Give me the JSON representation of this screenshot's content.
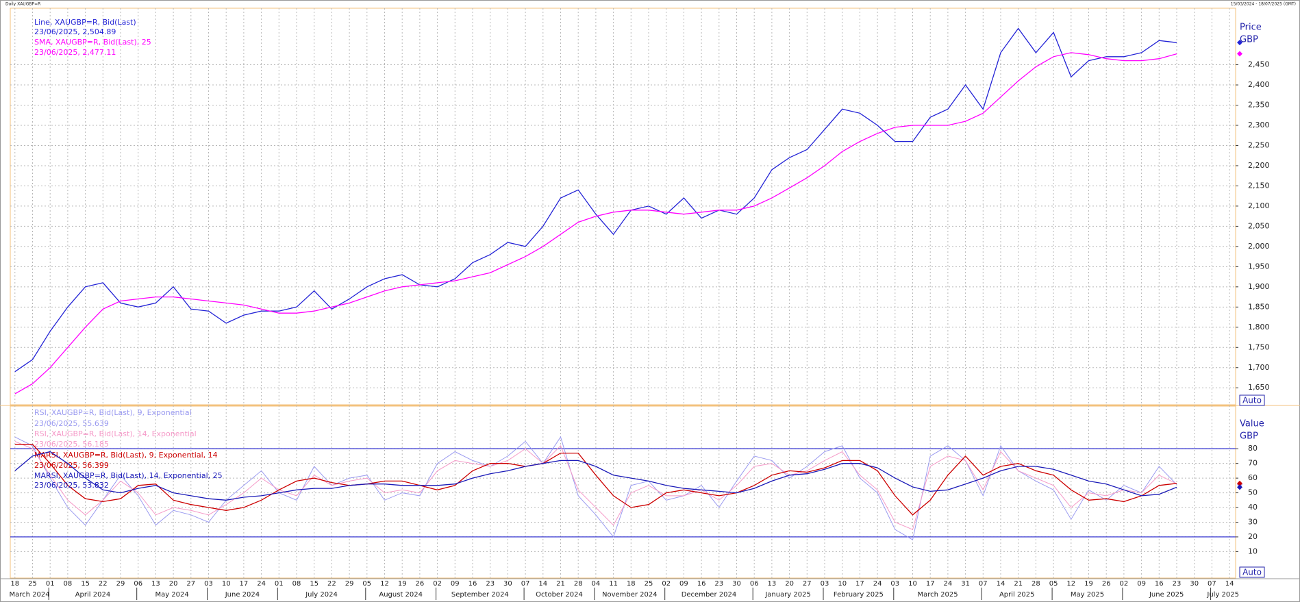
{
  "chart_data": [
    {
      "type": "line",
      "title": "Daily XAUGBP=R",
      "date_range": "15/03/2024 - 18/07/2025 (GMT)",
      "y_label_lines": [
        "Price",
        "GBP"
      ],
      "scale_mode": "Auto",
      "grid": true,
      "categories": [
        "18",
        "25",
        "01",
        "08",
        "15",
        "22",
        "29",
        "06",
        "13",
        "20",
        "27",
        "03",
        "10",
        "17",
        "24",
        "01",
        "08",
        "15",
        "22",
        "29",
        "05",
        "12",
        "19",
        "26",
        "02",
        "09",
        "16",
        "23",
        "30",
        "07",
        "14",
        "21",
        "28",
        "04",
        "11",
        "18",
        "25",
        "02",
        "09",
        "16",
        "23",
        "30",
        "06",
        "13",
        "20",
        "27",
        "03",
        "10",
        "17",
        "24",
        "03",
        "10",
        "17",
        "24",
        "31",
        "07",
        "14",
        "21",
        "28",
        "05",
        "12",
        "19",
        "26",
        "02",
        "09",
        "16",
        "23",
        "30",
        "07",
        "14"
      ],
      "months": [
        "March 2024",
        "April 2024",
        "May 2024",
        "June 2024",
        "July 2024",
        "August 2024",
        "September 2024",
        "October 2024",
        "November 2024",
        "December 2024",
        "January 2025",
        "February 2025",
        "March 2025",
        "April 2025",
        "May 2025",
        "June 2025",
        "July 2025"
      ],
      "ylim": [
        1608,
        2590
      ],
      "yticks": [
        {
          "value": 1650,
          "label": "1,650"
        },
        {
          "value": 1700,
          "label": "1,700"
        },
        {
          "value": 1750,
          "label": "1,750"
        },
        {
          "value": 1800,
          "label": "1,800"
        },
        {
          "value": 1850,
          "label": "1,850"
        },
        {
          "value": 1900,
          "label": "1,900"
        },
        {
          "value": 1950,
          "label": "1,950"
        },
        {
          "value": 2000,
          "label": "2,000"
        },
        {
          "value": 2050,
          "label": "2,050"
        },
        {
          "value": 2100,
          "label": "2,100"
        },
        {
          "value": 2150,
          "label": "2,150"
        },
        {
          "value": 2200,
          "label": "2,200"
        },
        {
          "value": 2250,
          "label": "2,250"
        },
        {
          "value": 2300,
          "label": "2,300"
        },
        {
          "value": 2350,
          "label": "2,350"
        },
        {
          "value": 2400,
          "label": "2,400"
        },
        {
          "value": 2450,
          "label": "2,450"
        }
      ],
      "series": [
        {
          "name": "Line, XAUGBP=R, Bid(Last)",
          "last_label": "23/06/2025, 2,504.89",
          "color": "#2323d6",
          "values": [
            1690,
            1720,
            1790,
            1850,
            1900,
            1910,
            1860,
            1850,
            1860,
            1900,
            1845,
            1840,
            1810,
            1830,
            1840,
            1840,
            1850,
            1890,
            1845,
            1870,
            1900,
            1920,
            1930,
            1905,
            1900,
            1920,
            1960,
            1980,
            2010,
            2000,
            2050,
            2120,
            2140,
            2080,
            2030,
            2090,
            2100,
            2080,
            2120,
            2070,
            2090,
            2080,
            2120,
            2190,
            2220,
            2240,
            2290,
            2340,
            2330,
            2300,
            2260,
            2260,
            2320,
            2340,
            2400,
            2340,
            2480,
            2540,
            2480,
            2530,
            2420,
            2460,
            2470,
            2470,
            2480,
            2510,
            2504.89,
            null,
            null,
            null
          ]
        },
        {
          "name": "SMA, XAUGBP=R, Bid(Last),  25",
          "last_label": "23/06/2025, 2,477.11",
          "color": "#ff00ff",
          "values": [
            1635,
            1660,
            1700,
            1750,
            1800,
            1845,
            1865,
            1870,
            1875,
            1875,
            1870,
            1865,
            1860,
            1855,
            1845,
            1835,
            1835,
            1840,
            1850,
            1860,
            1875,
            1890,
            1900,
            1905,
            1910,
            1915,
            1925,
            1935,
            1955,
            1975,
            2000,
            2030,
            2060,
            2075,
            2085,
            2090,
            2090,
            2085,
            2080,
            2085,
            2090,
            2090,
            2100,
            2120,
            2145,
            2170,
            2200,
            2235,
            2260,
            2280,
            2295,
            2300,
            2300,
            2300,
            2310,
            2330,
            2370,
            2410,
            2445,
            2470,
            2480,
            2475,
            2465,
            2460,
            2460,
            2465,
            2477.11,
            null,
            null,
            null
          ]
        }
      ]
    },
    {
      "type": "line",
      "y_label_lines": [
        "Value",
        "GBP"
      ],
      "scale_mode": "Auto",
      "grid": true,
      "ylim": [
        -8,
        109
      ],
      "yticks": [
        10,
        20,
        30,
        40,
        50,
        60,
        70,
        80
      ],
      "hlines": [
        80,
        20
      ],
      "hline_color": "#2222cc",
      "series": [
        {
          "name": "RSI, XAUGBP=R, Bid(Last),  9, Exponential",
          "last_label": "23/06/2025, 55.639",
          "color": "#9a9af0",
          "values": [
            88,
            82,
            60,
            40,
            28,
            45,
            62,
            48,
            28,
            38,
            35,
            30,
            45,
            55,
            65,
            50,
            45,
            68,
            55,
            60,
            62,
            45,
            50,
            48,
            70,
            78,
            72,
            68,
            75,
            85,
            70,
            88,
            48,
            35,
            20,
            55,
            58,
            45,
            48,
            55,
            40,
            58,
            75,
            72,
            60,
            68,
            78,
            82,
            60,
            50,
            25,
            18,
            75,
            82,
            72,
            48,
            82,
            65,
            58,
            52,
            32,
            52,
            45,
            55,
            50,
            68,
            55.639,
            null,
            null,
            null
          ]
        },
        {
          "name": "RSI, XAUGBP=R, Bid(Last),  14, Exponential",
          "last_label": "23/06/2025, 56.185",
          "color": "#f59ac8",
          "values": [
            85,
            80,
            62,
            45,
            35,
            45,
            58,
            50,
            35,
            40,
            38,
            35,
            42,
            50,
            60,
            52,
            48,
            62,
            55,
            58,
            60,
            50,
            52,
            50,
            65,
            72,
            70,
            68,
            72,
            80,
            70,
            82,
            52,
            40,
            28,
            50,
            55,
            48,
            48,
            52,
            45,
            55,
            68,
            70,
            62,
            65,
            72,
            78,
            62,
            52,
            30,
            25,
            68,
            75,
            72,
            52,
            78,
            65,
            60,
            55,
            40,
            50,
            48,
            52,
            50,
            62,
            56.185,
            null,
            null,
            null
          ]
        },
        {
          "name": "MARSI, XAUGBP=R, Bid(Last),  9, Exponential, 14",
          "last_label": "23/06/2025, 56.399",
          "color": "#cc0000",
          "values": [
            83,
            83,
            70,
            55,
            46,
            44,
            46,
            55,
            56,
            45,
            42,
            40,
            38,
            40,
            45,
            52,
            58,
            60,
            57,
            55,
            56,
            58,
            58,
            55,
            52,
            55,
            65,
            70,
            70,
            68,
            70,
            77,
            77,
            62,
            48,
            40,
            42,
            50,
            52,
            50,
            48,
            50,
            55,
            62,
            65,
            64,
            67,
            72,
            72,
            65,
            48,
            35,
            45,
            62,
            75,
            62,
            68,
            70,
            65,
            62,
            52,
            45,
            46,
            44,
            48,
            55,
            56.399,
            null,
            null,
            null
          ]
        },
        {
          "name": "MARSI, XAUGBP=R, Bid(Last),  14, Exponential, 25",
          "last_label": "23/06/2025, 53.832",
          "color": "#1a1ab8",
          "values": [
            65,
            75,
            78,
            70,
            60,
            52,
            50,
            53,
            55,
            50,
            48,
            46,
            45,
            47,
            48,
            50,
            52,
            53,
            53,
            55,
            56,
            56,
            55,
            55,
            55,
            56,
            60,
            63,
            65,
            68,
            70,
            72,
            72,
            68,
            62,
            60,
            58,
            55,
            53,
            52,
            51,
            50,
            53,
            58,
            62,
            63,
            66,
            70,
            70,
            67,
            60,
            54,
            51,
            52,
            56,
            60,
            65,
            68,
            68,
            66,
            62,
            58,
            56,
            52,
            48,
            49,
            53.832,
            null,
            null,
            null
          ]
        }
      ]
    }
  ]
}
